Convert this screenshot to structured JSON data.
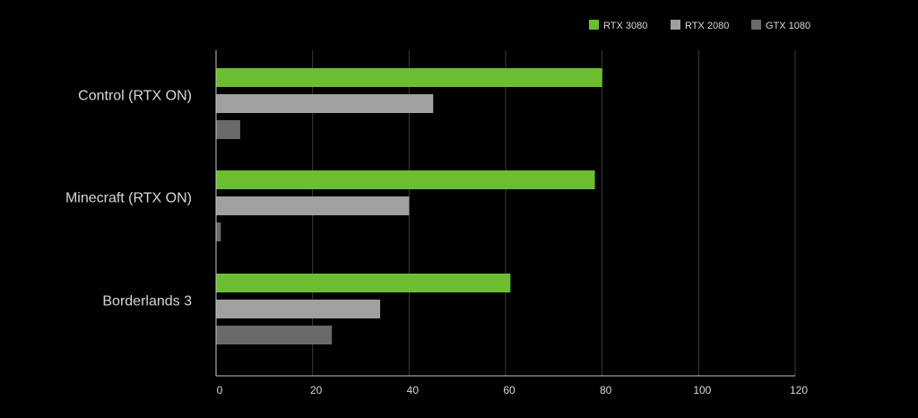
{
  "chart_data": {
    "type": "bar",
    "orientation": "horizontal",
    "title": "",
    "xlabel": "",
    "ylabel": "",
    "xlim": [
      0,
      120
    ],
    "xticks": [
      0,
      20,
      40,
      60,
      80,
      100,
      120
    ],
    "grid": "vertical",
    "legend": "top-right",
    "categories": [
      "Control (RTX ON)",
      "Minecraft (RTX ON)",
      "Borderlands 3"
    ],
    "series": [
      {
        "name": "RTX 3080",
        "color": "#6cbe30",
        "values": [
          80,
          78.5,
          61
        ]
      },
      {
        "name": "RTX 2080",
        "color": "#a0a0a0",
        "values": [
          45,
          40,
          34
        ]
      },
      {
        "name": "GTX 1080",
        "color": "#6a6a6a",
        "values": [
          5,
          1,
          24
        ]
      }
    ],
    "background": "#000000",
    "text_color": "#d8d8d8",
    "axis_color": "#c8c8c8",
    "grid_color": "#3a3a3a"
  }
}
